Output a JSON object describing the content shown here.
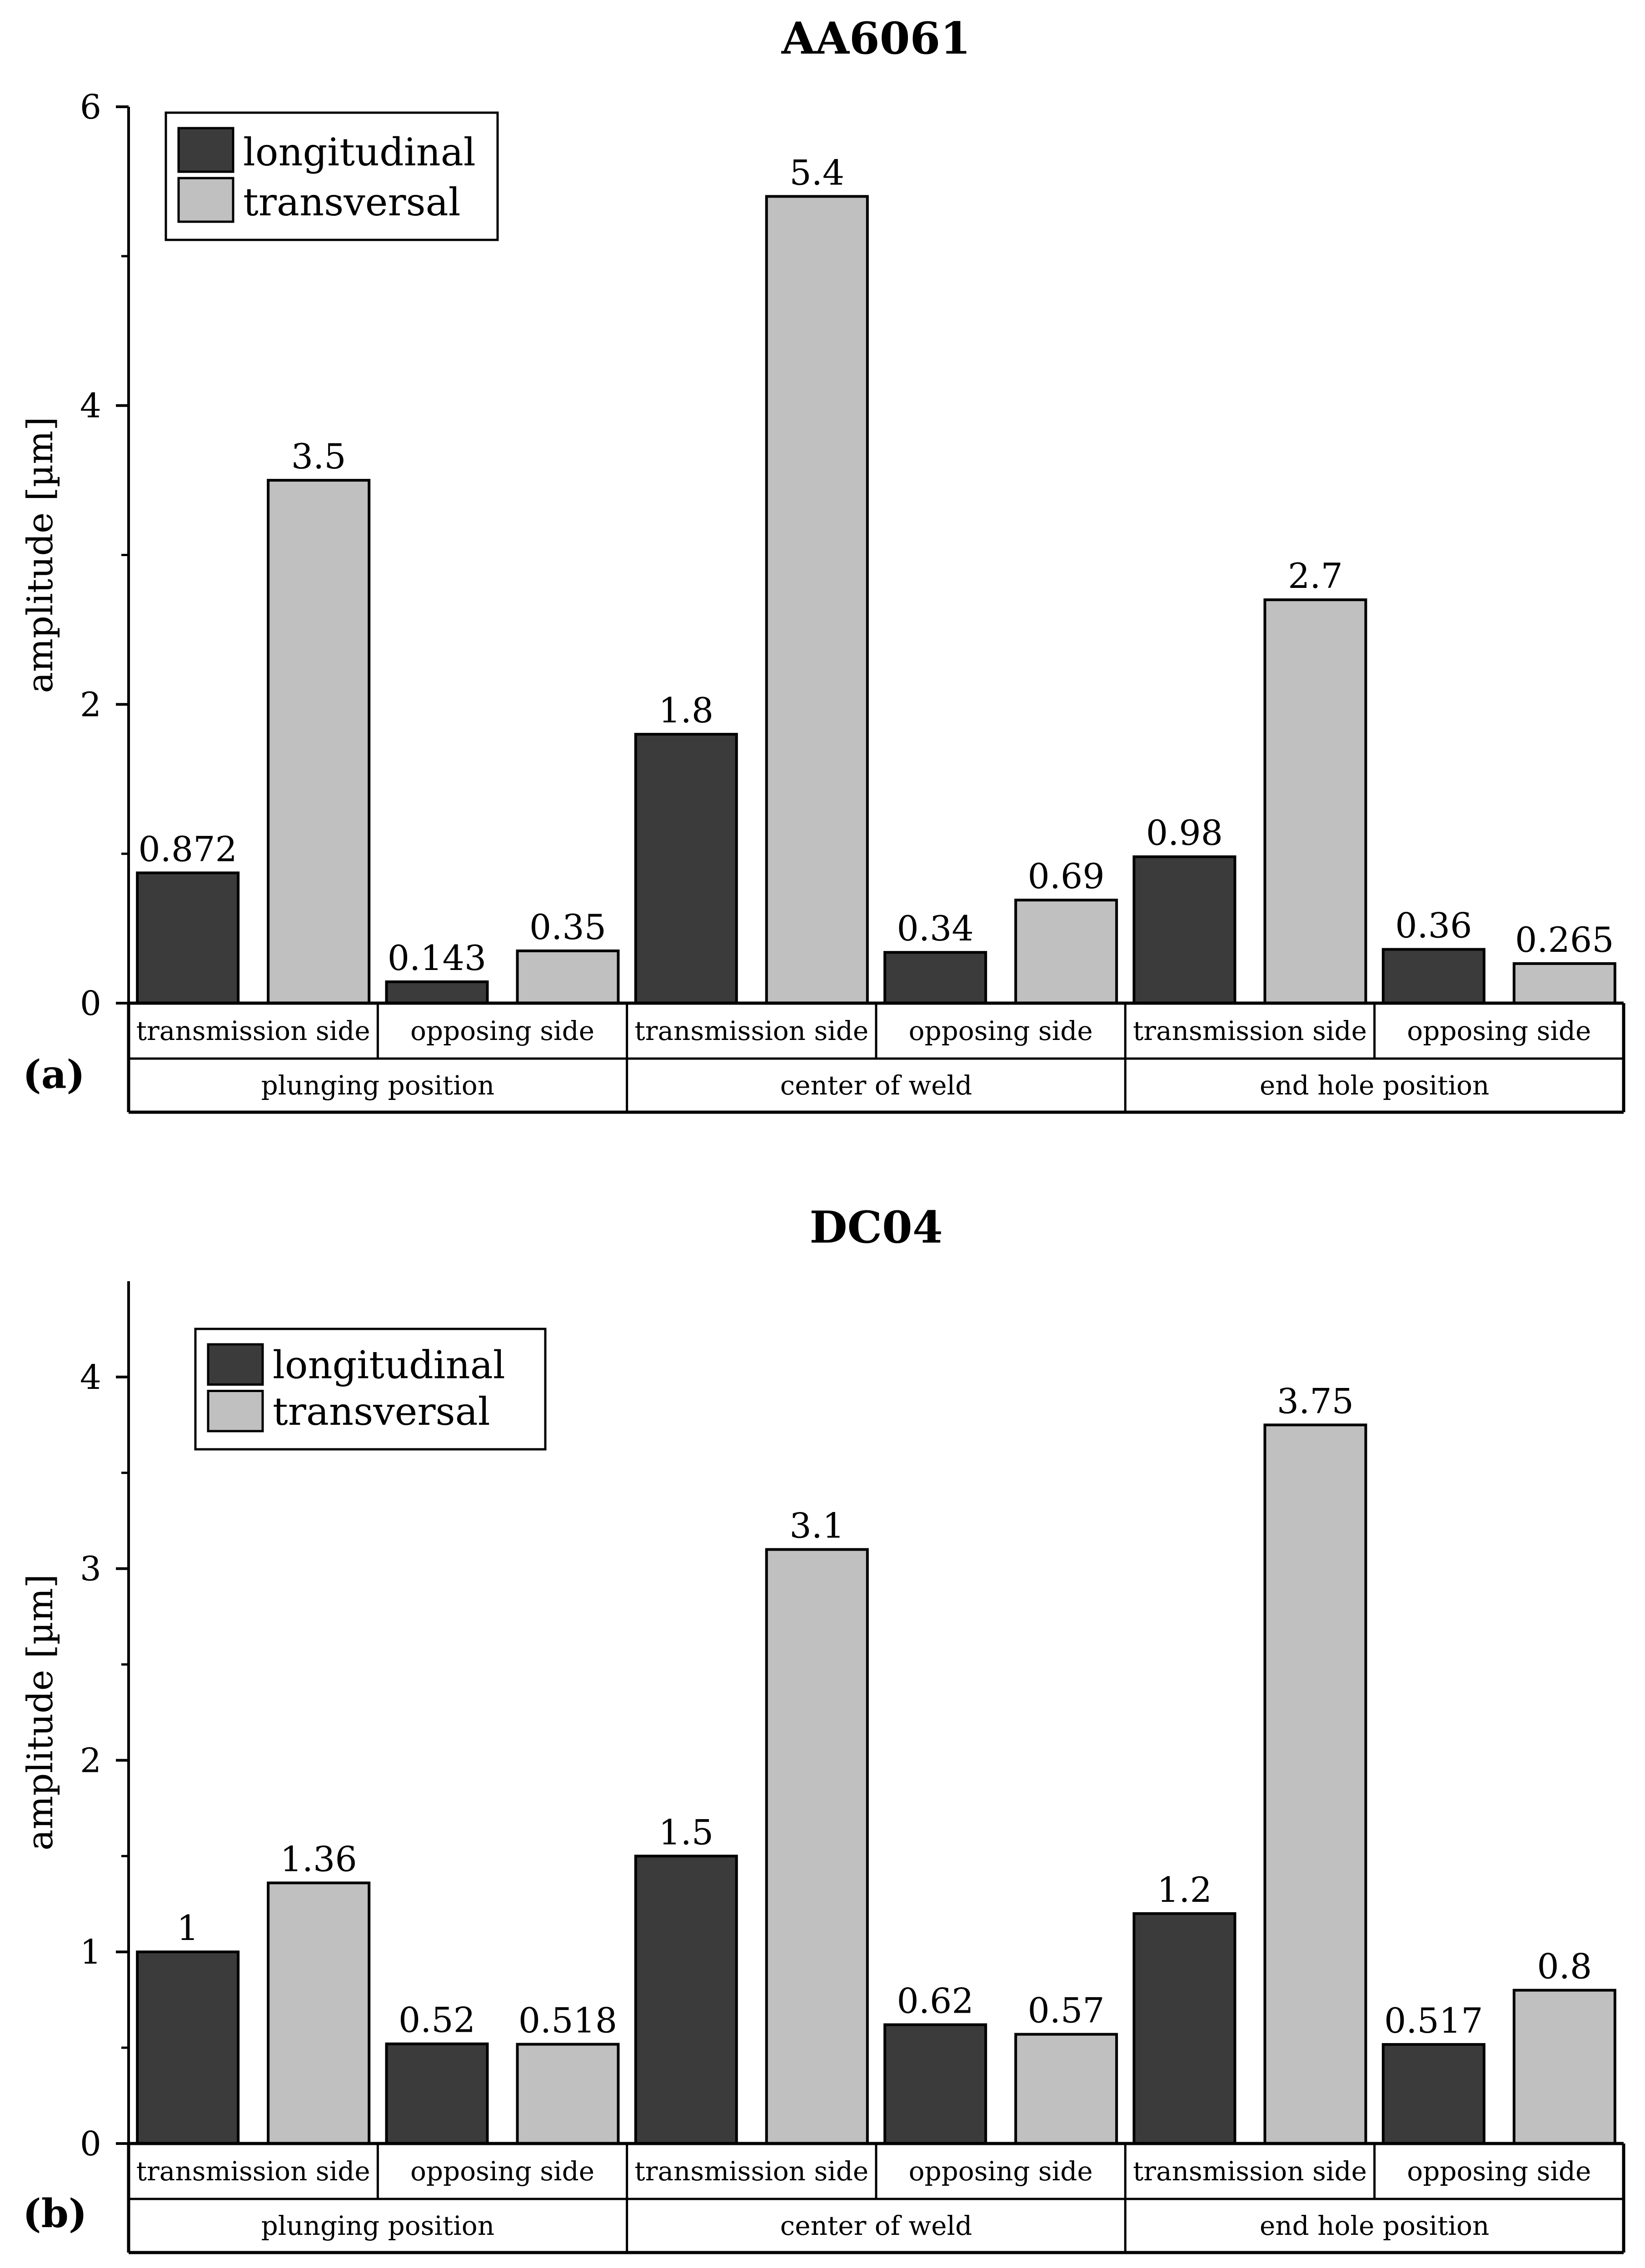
{
  "chart_data": [
    {
      "type": "bar",
      "panel_label": "(a)",
      "title": "AA6061",
      "xlabel": "",
      "ylabel": "amplitude [µm]",
      "ylim": [
        0,
        6
      ],
      "yticks": [
        0,
        2,
        4,
        6
      ],
      "categories": [
        "transmission side",
        "opposing side",
        "transmission side",
        "opposing side",
        "transmission side",
        "opposing side"
      ],
      "groups": [
        "plunging position",
        "center of weld",
        "end hole position"
      ],
      "series": [
        {
          "name": "longitudinal",
          "color": "#3b3b3b",
          "values": [
            0.872,
            0.143,
            1.8,
            0.34,
            0.98,
            0.36
          ],
          "labels": [
            "0.872",
            "0.143",
            "1.8",
            "0.34",
            "0.98",
            "0.36"
          ]
        },
        {
          "name": "transversal",
          "color": "#c0c0c0",
          "values": [
            3.5,
            0.35,
            5.4,
            0.69,
            2.7,
            0.265
          ],
          "labels": [
            "3.5",
            "0.35",
            "5.4",
            "0.69",
            "2.7",
            "0.265"
          ]
        }
      ],
      "legend_position": "top-left"
    },
    {
      "type": "bar",
      "panel_label": "(b)",
      "title": "DC04",
      "xlabel": "",
      "ylabel": "amplitude [µm]",
      "ylim": [
        0,
        4.5
      ],
      "yticks": [
        0,
        1,
        2,
        3,
        4
      ],
      "categories": [
        "transmission side",
        "opposing side",
        "transmission side",
        "opposing side",
        "transmission side",
        "opposing side"
      ],
      "groups": [
        "plunging position",
        "center of weld",
        "end hole position"
      ],
      "series": [
        {
          "name": "longitudinal",
          "color": "#3b3b3b",
          "values": [
            1,
            0.52,
            1.5,
            0.62,
            1.2,
            0.517
          ],
          "labels": [
            "1",
            "0.52",
            "1.5",
            "0.62",
            "1.2",
            "0.517"
          ]
        },
        {
          "name": "transversal",
          "color": "#c0c0c0",
          "values": [
            1.36,
            0.518,
            3.1,
            0.57,
            3.75,
            0.8
          ],
          "labels": [
            "1.36",
            "0.518",
            "3.1",
            "0.57",
            "3.75",
            "0.8"
          ]
        }
      ],
      "legend_position": "top-left"
    }
  ]
}
